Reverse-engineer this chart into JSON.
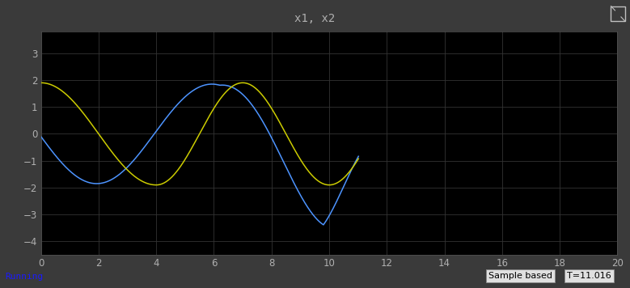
{
  "title": "x1, x2",
  "bg_color": "#000000",
  "header_color": "#3a3a3a",
  "sidebar_color": "#3a3a3a",
  "x1_color": "#4d94ff",
  "x2_color": "#cccc00",
  "grid_color": "#333333",
  "axis_label_color": "#b0b0b0",
  "tick_color": "#b0b0b0",
  "xlim": [
    0,
    20
  ],
  "ylim": [
    -4.5,
    3.8
  ],
  "xticks": [
    0,
    2,
    4,
    6,
    8,
    10,
    12,
    14,
    16,
    18,
    20
  ],
  "yticks": [
    -4,
    -3,
    -2,
    -1,
    0,
    1,
    2,
    3
  ],
  "bottom_text_left": "Running",
  "bottom_text_right1": "Sample based",
  "bottom_text_right2": "T=11.016",
  "title_color": "#b0b0b0",
  "figsize": [
    7.79,
    3.56
  ],
  "dpi": 100,
  "t_max": 11.016
}
